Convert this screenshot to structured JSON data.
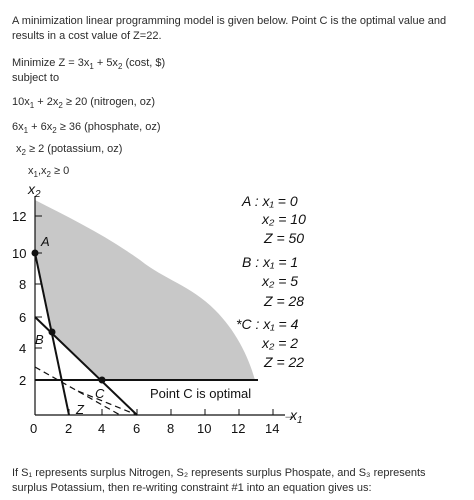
{
  "intro": "A minimization linear programming model is given below. Point C is the optimal value and results in a cost value of Z=22.",
  "objective": {
    "prefix": "Minimize Z = 3x",
    "s1": "1",
    "mid": " + 5x",
    "s2": "2",
    "suffix": " (cost, $)"
  },
  "subject_to": "subject to",
  "constraints": [
    {
      "a": "10x",
      "s1": "1",
      "b": " + 2x",
      "s2": "2",
      "c": " ≥ 20 (nitrogen, oz)"
    },
    {
      "a": "6x",
      "s1": "1",
      "b": " + 6x",
      "s2": "2",
      "c": " ≥ 36 (phosphate, oz)"
    },
    {
      "a": "x",
      "s1": "2",
      "b": " ≥ 2 (potassium, oz)"
    }
  ],
  "nonneg": {
    "a": "x",
    "s1": "1",
    "b": ",x",
    "s2": "2",
    "c": " ≥ 0"
  },
  "graph": {
    "y_axis_label": "x2",
    "x_axis_label": "x1",
    "x_ticks": [
      "0",
      "2",
      "4",
      "6",
      "8",
      "10",
      "12",
      "14"
    ],
    "y_ticks": [
      "2",
      "4",
      "6",
      "8",
      "10",
      "12"
    ],
    "points": [
      {
        "name": "A",
        "x1": 0,
        "x2": 10
      },
      {
        "name": "B",
        "x1": 1,
        "x2": 5
      },
      {
        "name": "C",
        "x1": 4,
        "x2": 2
      }
    ],
    "z_line_label": "Z",
    "optimal_label": "Point C is optimal",
    "annotations": {
      "a_x1": "A : x₁ = 0",
      "a_x2": "x₂ = 10",
      "a_z": "Z = 50",
      "b_x1": "B : x₁ = 1",
      "b_x2": "x₂ = 5",
      "b_z": "Z = 28",
      "c_x1": "*C : x₁ = 4",
      "c_x2": "x₂ = 2",
      "c_z": "Z = 22"
    },
    "colors": {
      "feasible": "#c8c8c8",
      "lines": "#111111"
    }
  },
  "footer": "If S₁ represents surplus Nitrogen, S₂ represents surplus Phospate, and S₃ represents surplus Potassium, then re-writing constraint #1 into an equation gives us:"
}
